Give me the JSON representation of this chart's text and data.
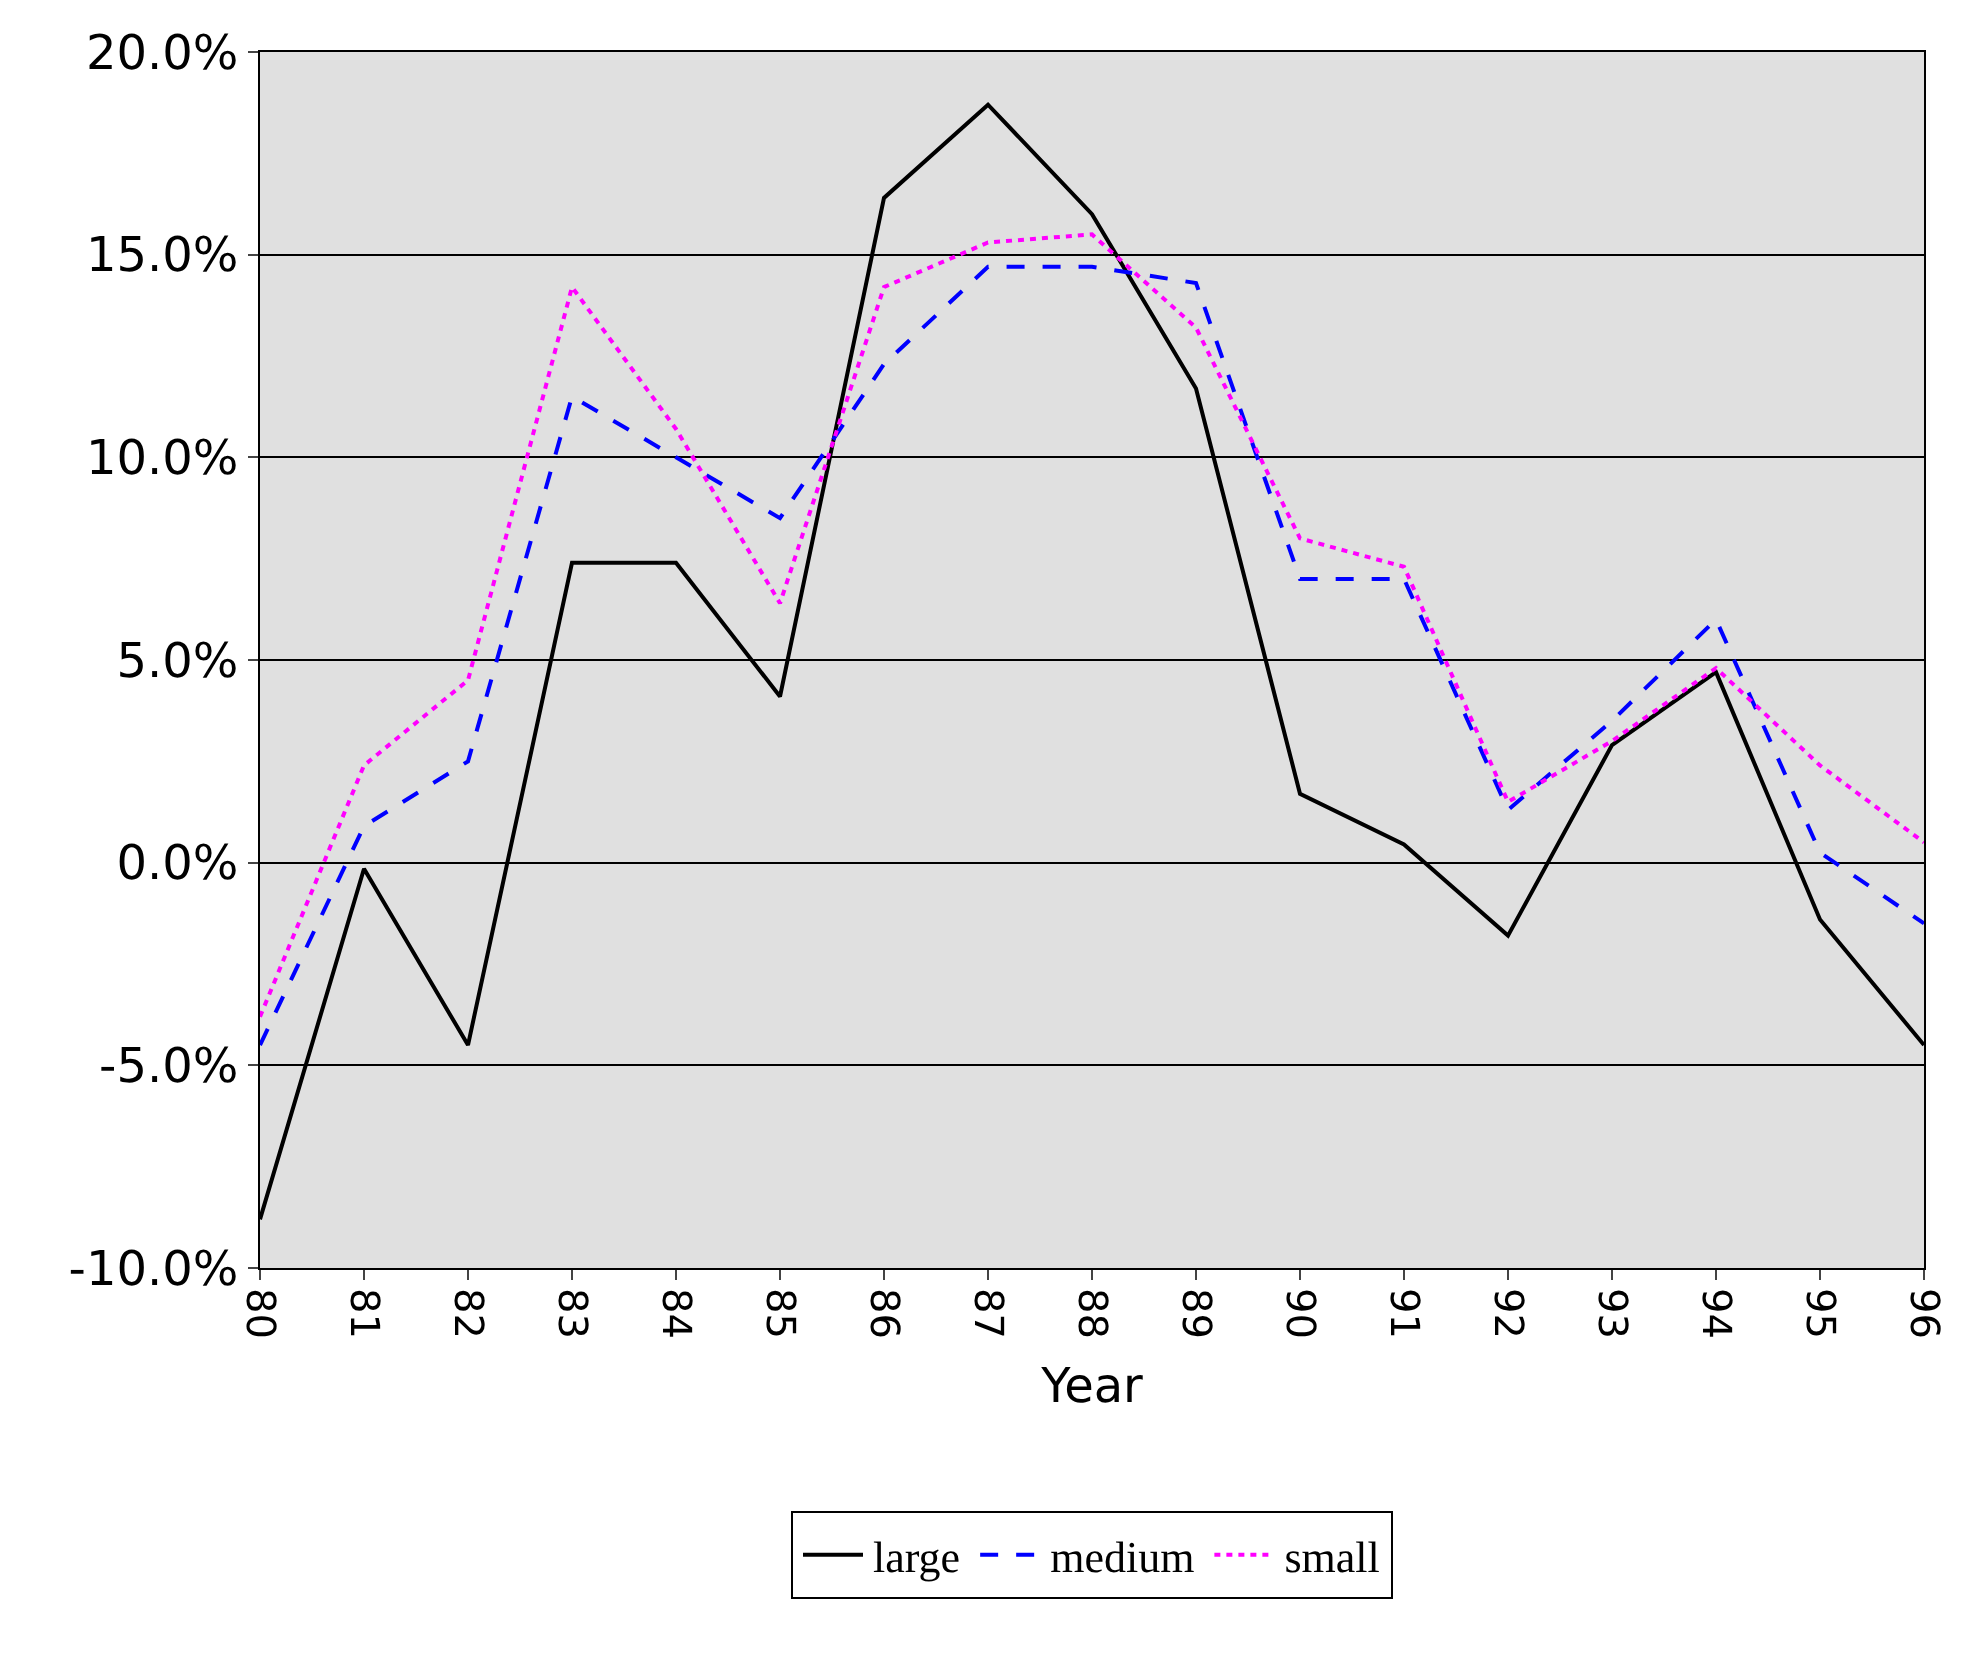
{
  "chart_data": {
    "type": "line",
    "xlabel": "Year",
    "categories": [
      "80",
      "81",
      "82",
      "83",
      "84",
      "85",
      "86",
      "87",
      "88",
      "89",
      "90",
      "91",
      "92",
      "93",
      "94",
      "95",
      "96"
    ],
    "series": [
      {
        "name": "large",
        "color": "#000000",
        "line_style": "solid",
        "values": [
          -8.8,
          -0.15,
          -4.5,
          7.4,
          7.4,
          4.1,
          16.4,
          18.7,
          16.0,
          11.7,
          1.7,
          0.45,
          -1.8,
          2.9,
          4.7,
          -1.4,
          -4.5
        ]
      },
      {
        "name": "medium",
        "color": "#0000ff",
        "line_style": "dashed",
        "values": [
          -4.5,
          0.9,
          2.5,
          11.5,
          10.0,
          8.5,
          12.3,
          14.7,
          14.7,
          14.3,
          7.0,
          7.0,
          1.3,
          3.5,
          6.0,
          0.25,
          -1.5
        ]
      },
      {
        "name": "small",
        "color": "#ff00ff",
        "line_style": "dotted",
        "values": [
          -3.8,
          2.4,
          4.5,
          14.2,
          10.7,
          6.4,
          14.2,
          15.3,
          15.5,
          13.2,
          8.0,
          7.3,
          1.5,
          3.0,
          4.8,
          2.4,
          0.5
        ]
      }
    ],
    "ylim": [
      -10,
      20
    ],
    "yticks": [
      {
        "value": -10,
        "label": "-10.0%"
      },
      {
        "value": -5,
        "label": "-5.0%"
      },
      {
        "value": 0,
        "label": "0.0%"
      },
      {
        "value": 5,
        "label": "5.0%"
      },
      {
        "value": 10,
        "label": "10.0%"
      },
      {
        "value": 15,
        "label": "15.0%"
      },
      {
        "value": 20,
        "label": "20.0%"
      }
    ],
    "grid": "y",
    "legend": "bottom",
    "marker": "none"
  }
}
